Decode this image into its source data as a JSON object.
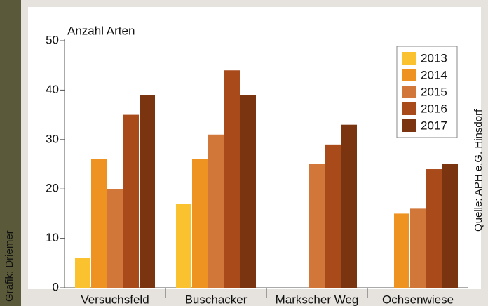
{
  "chart_data": {
    "type": "bar",
    "y_label": "Anzahl Arten",
    "credit_left": "Grafik: Driemer",
    "credit_right": "Quelle: APH e.G. Hinsdorf",
    "categories": [
      "Versuchsfeld",
      "Buschacker",
      "Markscher Weg",
      "Ochsenwiese"
    ],
    "series": [
      {
        "name": "2013",
        "color": "#f9c22e",
        "values": [
          6,
          17,
          null,
          null
        ]
      },
      {
        "name": "2014",
        "color": "#ee9222",
        "values": [
          26,
          26,
          null,
          15
        ]
      },
      {
        "name": "2015",
        "color": "#d2773a",
        "values": [
          20,
          31,
          25,
          16
        ]
      },
      {
        "name": "2016",
        "color": "#a84a1a",
        "values": [
          35,
          44,
          29,
          24
        ]
      },
      {
        "name": "2017",
        "color": "#7a3510",
        "values": [
          39,
          39,
          33,
          25
        ]
      }
    ],
    "ylim": [
      0,
      50
    ],
    "yticks": [
      0,
      10,
      20,
      30,
      40,
      50
    ],
    "legend": "top-right"
  }
}
